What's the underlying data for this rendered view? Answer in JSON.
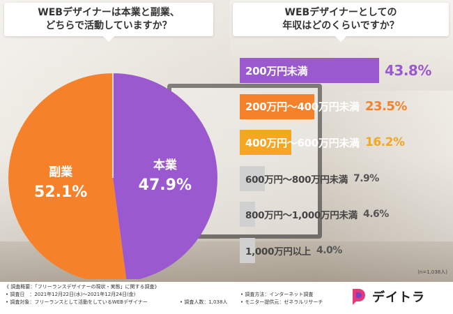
{
  "chart_data": [
    {
      "type": "pie",
      "title": "WEBデザイナーは本業と副業、どちらで活動していますか？",
      "title_lines": [
        "WEBデザイナーは本業と副業、",
        "どちらで活動していますか？"
      ],
      "slices": [
        {
          "label": "本業",
          "value": 47.9,
          "display": "47.9%",
          "color": "#9b59d0"
        },
        {
          "label": "副業",
          "value": 52.1,
          "display": "52.1%",
          "color": "#f5822a"
        }
      ]
    },
    {
      "type": "bar",
      "orientation": "horizontal",
      "title": "WEBデザイナーとしての年収はどのくらいですか？",
      "title_lines": [
        "WEBデザイナーとしての",
        "年収はどのくらいですか？"
      ],
      "categories": [
        "200万円未満",
        "200万円〜400万円未満",
        "400万円〜600万円未満",
        "600万円〜800万円未満",
        "800万円〜1,000万円未満",
        "1,000万円以上"
      ],
      "values": [
        43.8,
        23.5,
        16.2,
        7.9,
        4.6,
        4.0
      ],
      "labels": [
        "43.8%",
        "23.5%",
        "16.2%",
        "7.9%",
        "4.6%",
        "4.0%"
      ],
      "colors": [
        "#9b59d0",
        "#f5822a",
        "#f5a623",
        "#d0d0d0",
        "#d0d0d0",
        "#d0d0d0"
      ],
      "value_colors": [
        "#9b59d0",
        "#f5822a",
        "#f5a623",
        "#555555",
        "#555555",
        "#555555"
      ],
      "note": "(n=1,038人)"
    }
  ],
  "footer": {
    "survey_title": "《 調査概要：「フリーランスデザイナーの現状・実態」に関する調査》",
    "date": "• 調査日　：2021年12月22日(水)〜2021年12月24日(金)",
    "target": "• 調査対象：フリーランスとして活動をしているWEBデザイナー",
    "count": "• 調査人数：1,038人",
    "method": "• 調査方法：インターネット調査",
    "provider": "• モニター提供元：ゼネラルリサーチ"
  },
  "logo": {
    "text": "デイトラ",
    "color": "#e6397a"
  }
}
